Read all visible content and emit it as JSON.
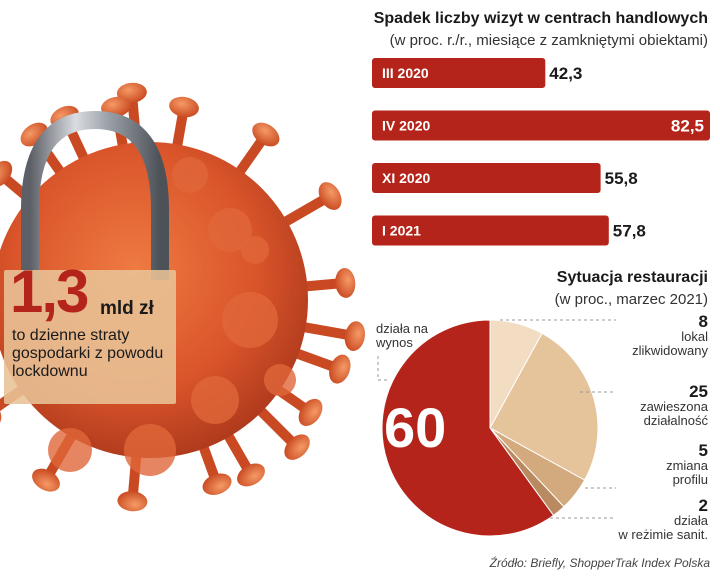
{
  "headline": {
    "value": "1,3",
    "unit": "mld zł",
    "description": "to dzienne straty gospodarki z powodu lockdownu"
  },
  "chart_data": [
    {
      "type": "bar",
      "orientation": "horizontal",
      "title": "Spadek liczby wizyt w centrach handlowych",
      "subtitle": "(w proc. r./r., miesiące z zamkniętymi obiektami)",
      "categories": [
        "III 2020",
        "IV 2020",
        "XI 2020",
        "I 2021"
      ],
      "values": [
        42.3,
        82.5,
        55.8,
        57.8
      ],
      "value_labels": [
        "42,3",
        "82,5",
        "55,8",
        "57,8"
      ],
      "xlim": [
        0,
        82.5
      ],
      "bar_color": "#b5241a"
    },
    {
      "type": "pie",
      "title": "Sytuacja restauracji",
      "subtitle": "(w proc., marzec 2021)",
      "slices": [
        {
          "label": "działa na wynos",
          "value": 60,
          "value_label": "60",
          "color": "#b5241a"
        },
        {
          "label": "lokal zlikwidowany",
          "value": 8,
          "value_label": "8",
          "color": "#f2dcc2"
        },
        {
          "label": "zawieszona działalność",
          "value": 25,
          "value_label": "25",
          "color": "#e6c49b"
        },
        {
          "label": "zmiana profilu",
          "value": 5,
          "value_label": "5",
          "color": "#d3aa7d"
        },
        {
          "label": "działa w reżimie sanit.",
          "value": 2,
          "value_label": "2",
          "color": "#b98a60"
        }
      ]
    }
  ],
  "labels": {
    "pie_left": [
      "działa na",
      "wynos"
    ],
    "pie_right": [
      {
        "num": "8",
        "lines": [
          "lokal",
          "zlikwidowany"
        ]
      },
      {
        "num": "25",
        "lines": [
          "zawieszona",
          "działalność"
        ]
      },
      {
        "num": "5",
        "lines": [
          "zmiana",
          "profilu"
        ]
      },
      {
        "num": "2",
        "lines": [
          "działa",
          "w reżimie sanit."
        ]
      }
    ]
  },
  "source": "Źródło: Briefly, ShopperTrak Index Polska"
}
